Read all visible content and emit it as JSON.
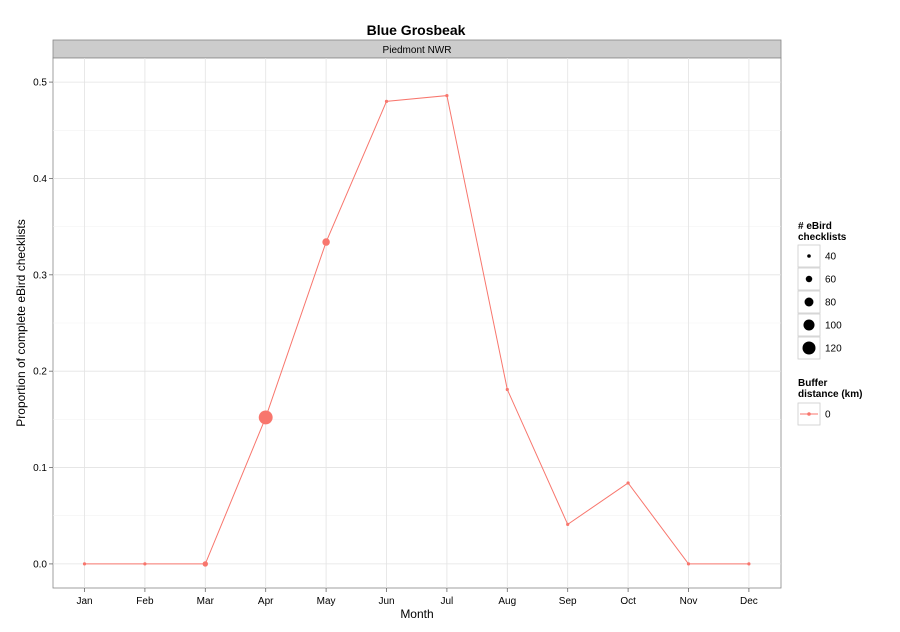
{
  "chart_data": {
    "type": "line",
    "title": "Blue Grosbeak",
    "facet_label": "Piedmont NWR",
    "xlabel": "Month",
    "ylabel": "Proportion of complete eBird checklists",
    "categories": [
      "Jan",
      "Feb",
      "Mar",
      "Apr",
      "May",
      "Jun",
      "Jul",
      "Aug",
      "Sep",
      "Oct",
      "Nov",
      "Dec"
    ],
    "ylim": [
      -0.025,
      0.525
    ],
    "yticks": [
      0.0,
      0.1,
      0.2,
      0.3,
      0.4,
      0.5
    ],
    "ytick_labels": [
      "0.0",
      "0.1",
      "0.2",
      "0.3",
      "0.4",
      "0.5"
    ],
    "grid": true,
    "legend_position": "right",
    "series": [
      {
        "name": "0",
        "color": "#F8766D",
        "values": [
          0.0,
          0.0,
          0.0,
          0.152,
          0.334,
          0.48,
          0.486,
          0.181,
          0.041,
          0.084,
          0.0,
          0.0
        ],
        "checklists": [
          14,
          17,
          52,
          130,
          68,
          28,
          8,
          4,
          5,
          4,
          6,
          5
        ]
      }
    ],
    "size_legend": {
      "title_line1": "# eBird",
      "title_line2": "checklists",
      "values": [
        40,
        60,
        80,
        100,
        120
      ],
      "labels": [
        "40",
        "60",
        "80",
        "100",
        "120"
      ]
    },
    "color_legend": {
      "title_line1": "Buffer",
      "title_line2": "distance (km)",
      "labels": [
        "0"
      ]
    }
  }
}
